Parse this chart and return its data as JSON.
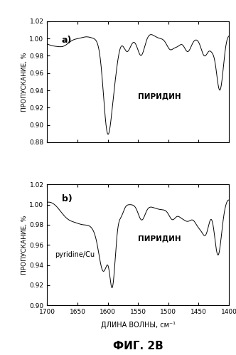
{
  "title": "ФИГ. 2В",
  "xlabel": "ДЛИНА ВОЛНЫ, см⁻¹",
  "ylabel": "ПРОПУСКАНИЕ, %",
  "xlim": [
    1700,
    1400
  ],
  "subplot_a": {
    "label": "a)",
    "annotation": "ПИРИДИН",
    "ylim": [
      0.88,
      1.02
    ],
    "yticks": [
      0.88,
      0.9,
      0.92,
      0.94,
      0.96,
      0.98,
      1.0,
      1.02
    ]
  },
  "subplot_b": {
    "label": "b)",
    "annotation": "ПИРИДИН",
    "annotation2": "pyridine/Cu",
    "ylim": [
      0.9,
      1.02
    ],
    "yticks": [
      0.9,
      0.92,
      0.94,
      0.96,
      0.98,
      1.0,
      1.02
    ]
  },
  "line_color": "#000000",
  "background_color": "#ffffff",
  "xticks": [
    1700,
    1650,
    1600,
    1550,
    1500,
    1450,
    1400
  ]
}
